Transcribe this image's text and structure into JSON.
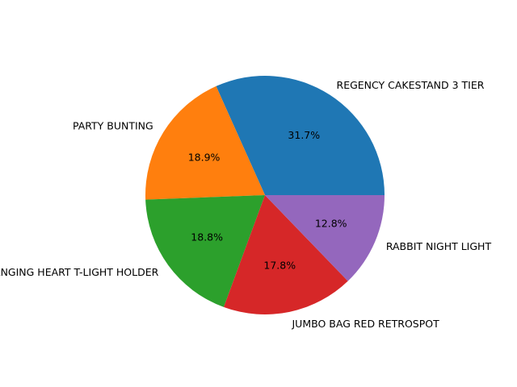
{
  "chart_data": {
    "type": "pie",
    "labels": [
      "REGENCY CAKESTAND 3 TIER",
      "PARTY BUNTING",
      "WHITE HANGING HEART T-LIGHT HOLDER",
      "JUMBO BAG RED RETROSPOT",
      "RABBIT NIGHT LIGHT"
    ],
    "values": [
      31.7,
      18.9,
      18.8,
      17.8,
      12.8
    ],
    "value_labels": [
      "31.7%",
      "18.9%",
      "18.8%",
      "17.8%",
      "12.8%"
    ],
    "colors": [
      "#1f77b4",
      "#ff7f0e",
      "#2ca02c",
      "#d62728",
      "#9467bd"
    ],
    "start_angle_deg": 0,
    "direction": "counterclockwise",
    "legend": "none"
  }
}
